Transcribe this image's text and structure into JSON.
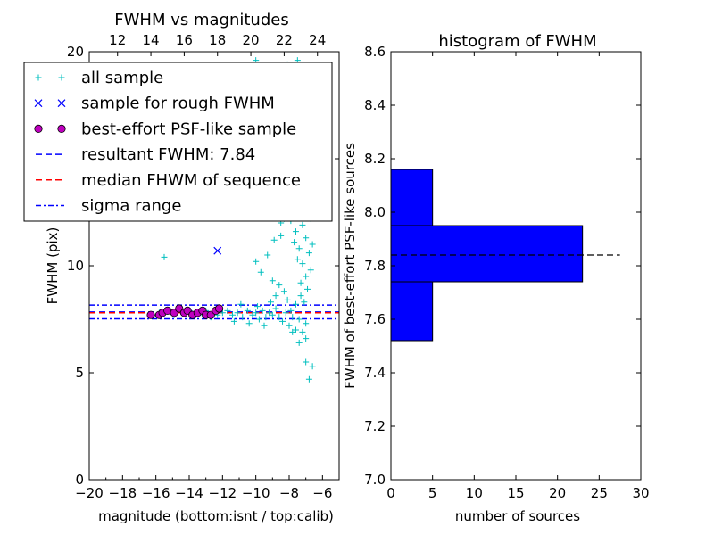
{
  "chart_data": [
    {
      "type": "scatter",
      "title": "FWHM vs magnitudes",
      "xlabel": "magnitude (bottom:isnt / top:calib)",
      "ylabel": "FWHM (pix)",
      "xlim": [
        -20,
        -5
      ],
      "ylim": [
        0,
        20
      ],
      "x_ticks": [
        -20,
        -18,
        -16,
        -14,
        -12,
        -10,
        -8,
        -6
      ],
      "x_tick_labels": [
        "−20",
        "−18",
        "−16",
        "−14",
        "−12",
        "−10",
        "−8",
        "−6"
      ],
      "y_ticks": [
        0,
        5,
        10,
        15,
        20
      ],
      "y_tick_labels": [
        "0",
        "5",
        "10",
        "15",
        "20"
      ],
      "top_axis_offset": 30.3,
      "top_ticks": [
        12,
        14,
        16,
        18,
        20,
        22,
        24
      ],
      "top_tick_labels": [
        "12",
        "14",
        "16",
        "18",
        "20",
        "22",
        "24"
      ],
      "legend_position": "upper-left",
      "legend": [
        {
          "label": "all sample",
          "marker": "plus",
          "color": "#00bfbf"
        },
        {
          "label": "sample for rough FWHM",
          "marker": "x",
          "color": "#0000ff"
        },
        {
          "label": "best-effort PSF-like sample",
          "marker": "circle",
          "color": "#bf00bf"
        },
        {
          "label": "resultant FWHM: 7.84",
          "marker": "dash",
          "color": "#0000ff"
        },
        {
          "label": "median FHWM of sequence",
          "marker": "dash",
          "color": "#ff0000"
        },
        {
          "label": "sigma range",
          "marker": "dashdot",
          "color": "#0000ff"
        }
      ],
      "hlines": [
        {
          "y": 7.84,
          "color": "#0000ff",
          "style": "dash"
        },
        {
          "y": 7.8,
          "color": "#ff0000",
          "style": "dash"
        },
        {
          "y": 8.16,
          "color": "#0000ff",
          "style": "dashdot"
        },
        {
          "y": 7.52,
          "color": "#0000ff",
          "style": "dashdot"
        }
      ],
      "series": [
        {
          "name": "all sample",
          "color": "#00bfbf",
          "marker": "plus",
          "points": [
            [
              -15.5,
              10.4
            ],
            [
              -16.2,
              7.7
            ],
            [
              -15.8,
              7.8
            ],
            [
              -15.3,
              7.9
            ],
            [
              -14.9,
              7.7
            ],
            [
              -14.6,
              8.0
            ],
            [
              -14.3,
              7.8
            ],
            [
              -14.0,
              7.9
            ],
            [
              -13.6,
              7.7
            ],
            [
              -13.3,
              7.8
            ],
            [
              -13.0,
              7.9
            ],
            [
              -12.7,
              7.6
            ],
            [
              -12.3,
              7.7
            ],
            [
              -12.0,
              7.8
            ],
            [
              -11.7,
              7.9
            ],
            [
              -11.4,
              7.7
            ],
            [
              -11.1,
              7.8
            ],
            [
              -10.8,
              7.6
            ],
            [
              -10.5,
              7.9
            ],
            [
              -10.2,
              7.7
            ],
            [
              -10.0,
              7.8
            ],
            [
              -9.8,
              7.5
            ],
            [
              -9.6,
              7.9
            ],
            [
              -9.4,
              7.6
            ],
            [
              -9.2,
              7.8
            ],
            [
              -9.0,
              7.7
            ],
            [
              -8.8,
              8.0
            ],
            [
              -8.6,
              7.6
            ],
            [
              -8.4,
              7.4
            ],
            [
              -8.2,
              7.8
            ],
            [
              -8.0,
              7.2
            ],
            [
              -7.8,
              7.6
            ],
            [
              -7.6,
              7.0
            ],
            [
              -7.4,
              7.5
            ],
            [
              -7.2,
              6.9
            ],
            [
              -7.0,
              7.3
            ],
            [
              -11.3,
              7.4
            ],
            [
              -10.9,
              8.2
            ],
            [
              -10.4,
              7.3
            ],
            [
              -9.9,
              8.1
            ],
            [
              -9.5,
              7.2
            ],
            [
              -9.1,
              8.3
            ],
            [
              -10.0,
              10.2
            ],
            [
              -9.7,
              9.7
            ],
            [
              -9.3,
              10.5
            ],
            [
              -9.0,
              9.3
            ],
            [
              -8.8,
              8.6
            ],
            [
              -8.6,
              9.1
            ],
            [
              -8.9,
              11.2
            ],
            [
              -8.5,
              12.0
            ],
            [
              -8.7,
              12.8
            ],
            [
              -8.3,
              13.6
            ],
            [
              -8.6,
              14.2
            ],
            [
              -8.4,
              15.4
            ],
            [
              -8.2,
              14.7
            ],
            [
              -8.0,
              13.2
            ],
            [
              -7.8,
              12.4
            ],
            [
              -7.6,
              11.6
            ],
            [
              -7.4,
              10.8
            ],
            [
              -7.2,
              10.1
            ],
            [
              -7.0,
              9.5
            ],
            [
              -6.9,
              8.9
            ],
            [
              -7.1,
              8.3
            ],
            [
              -7.3,
              9.2
            ],
            [
              -7.5,
              10.3
            ],
            [
              -7.7,
              11.1
            ],
            [
              -7.9,
              12.1
            ],
            [
              -8.1,
              13.0
            ],
            [
              -8.3,
              12.2
            ],
            [
              -8.5,
              11.4
            ],
            [
              -7.6,
              13.8
            ],
            [
              -7.4,
              12.7
            ],
            [
              -7.2,
              11.9
            ],
            [
              -7.0,
              11.3
            ],
            [
              -6.8,
              10.6
            ],
            [
              -6.7,
              9.8
            ],
            [
              -6.9,
              12.4
            ],
            [
              -7.1,
              13.5
            ],
            [
              -7.3,
              14.3
            ],
            [
              -7.5,
              15.1
            ],
            [
              -7.8,
              15.9
            ],
            [
              -8.0,
              16.4
            ],
            [
              -8.2,
              17.1
            ],
            [
              -7.9,
              17.6
            ],
            [
              -7.7,
              16.8
            ],
            [
              -8.4,
              16.2
            ],
            [
              -8.6,
              17.3
            ],
            [
              -7.6,
              18.2
            ],
            [
              -8.1,
              19.4
            ],
            [
              -7.5,
              19.6
            ],
            [
              -10.0,
              19.6
            ],
            [
              -9.5,
              18.9
            ],
            [
              -7.2,
              18.4
            ],
            [
              -6.9,
              16.6
            ],
            [
              -7.0,
              15.2
            ],
            [
              -6.8,
              14.0
            ],
            [
              -6.6,
              13.1
            ],
            [
              -6.7,
              12.2
            ],
            [
              -6.6,
              11.0
            ],
            [
              -7.3,
              8.6
            ],
            [
              -7.6,
              8.2
            ],
            [
              -7.9,
              7.9
            ],
            [
              -8.1,
              8.4
            ],
            [
              -8.3,
              8.8
            ],
            [
              -7.0,
              5.5
            ],
            [
              -6.6,
              5.3
            ],
            [
              -6.8,
              4.7
            ],
            [
              -7.0,
              6.6
            ],
            [
              -7.4,
              6.4
            ],
            [
              -7.8,
              6.9
            ]
          ]
        },
        {
          "name": "sample for rough FWHM",
          "color": "#0000ff",
          "marker": "x",
          "points": [
            [
              -12.3,
              10.7
            ]
          ]
        },
        {
          "name": "best-effort PSF-like sample",
          "color": "#bf00bf",
          "marker": "circle",
          "points": [
            [
              -16.3,
              7.7
            ],
            [
              -15.8,
              7.7
            ],
            [
              -15.6,
              7.8
            ],
            [
              -15.3,
              7.9
            ],
            [
              -14.9,
              7.8
            ],
            [
              -14.6,
              8.0
            ],
            [
              -14.3,
              7.8
            ],
            [
              -14.1,
              7.9
            ],
            [
              -13.8,
              7.7
            ],
            [
              -13.5,
              7.8
            ],
            [
              -13.2,
              7.9
            ],
            [
              -13.0,
              7.7
            ],
            [
              -12.7,
              7.7
            ],
            [
              -12.4,
              7.9
            ],
            [
              -12.2,
              8.0
            ]
          ]
        }
      ]
    },
    {
      "type": "bar",
      "orientation": "horizontal",
      "title": "histogram of FWHM",
      "xlabel": "number of sources",
      "ylabel": "FWHM of best-effort PSF-like sources",
      "xlim": [
        0,
        30
      ],
      "ylim": [
        7.0,
        8.6
      ],
      "x_ticks": [
        0,
        5,
        10,
        15,
        20,
        25,
        30
      ],
      "x_tick_labels": [
        "0",
        "5",
        "10",
        "15",
        "20",
        "25",
        "30"
      ],
      "y_ticks": [
        7.0,
        7.2,
        7.4,
        7.6,
        7.8,
        8.0,
        8.2,
        8.4,
        8.6
      ],
      "y_tick_labels": [
        "7.0",
        "7.2",
        "7.4",
        "7.6",
        "7.8",
        "8.0",
        "8.2",
        "8.4",
        "8.6"
      ],
      "bar_color": "#0000ff",
      "bins": [
        {
          "low": 7.52,
          "high": 7.74,
          "count": 5
        },
        {
          "low": 7.74,
          "high": 7.95,
          "count": 23
        },
        {
          "low": 7.95,
          "high": 8.16,
          "count": 5
        }
      ],
      "hline": {
        "y": 7.84,
        "x_to": 27.5,
        "color": "#000000",
        "style": "dash"
      }
    }
  ]
}
